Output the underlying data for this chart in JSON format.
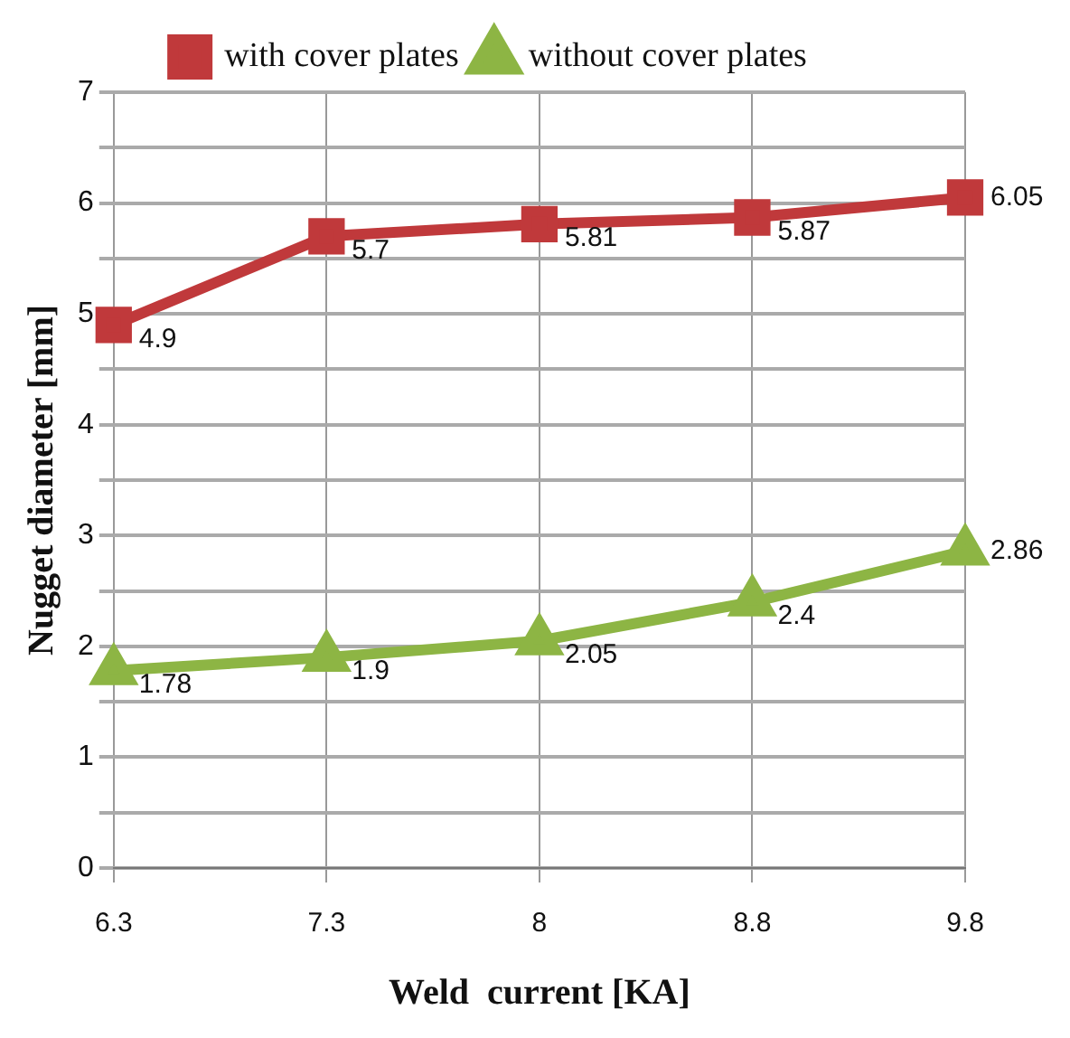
{
  "chart_data": {
    "type": "line",
    "xlabel": "Weld  current [KA]",
    "ylabel": "Nugget diameter [mm]",
    "categories": [
      "6.3",
      "7.3",
      "8",
      "8.8",
      "9.8"
    ],
    "series": [
      {
        "name": "with cover plates",
        "color": "#c0393b",
        "marker": "square",
        "values": [
          4.9,
          5.7,
          5.81,
          5.87,
          6.05
        ]
      },
      {
        "name": "without cover plates",
        "color": "#8db544",
        "marker": "triangle",
        "values": [
          1.78,
          1.9,
          2.05,
          2.4,
          2.86
        ]
      }
    ],
    "ylim": [
      0,
      7
    ],
    "yticks": [
      0,
      {
        "value": 0.5,
        "label": null
      },
      1,
      {
        "value": 1.5,
        "label": null
      },
      2,
      {
        "value": 2.5,
        "label": null
      },
      3,
      {
        "value": 3.5,
        "label": null
      },
      4,
      {
        "value": 4.5,
        "label": null
      },
      5,
      {
        "value": 5.5,
        "label": null
      },
      6,
      {
        "value": 6.5,
        "label": null
      },
      7
    ],
    "grid": true,
    "legend": "top",
    "data_labels": true,
    "line_style": "solid"
  }
}
